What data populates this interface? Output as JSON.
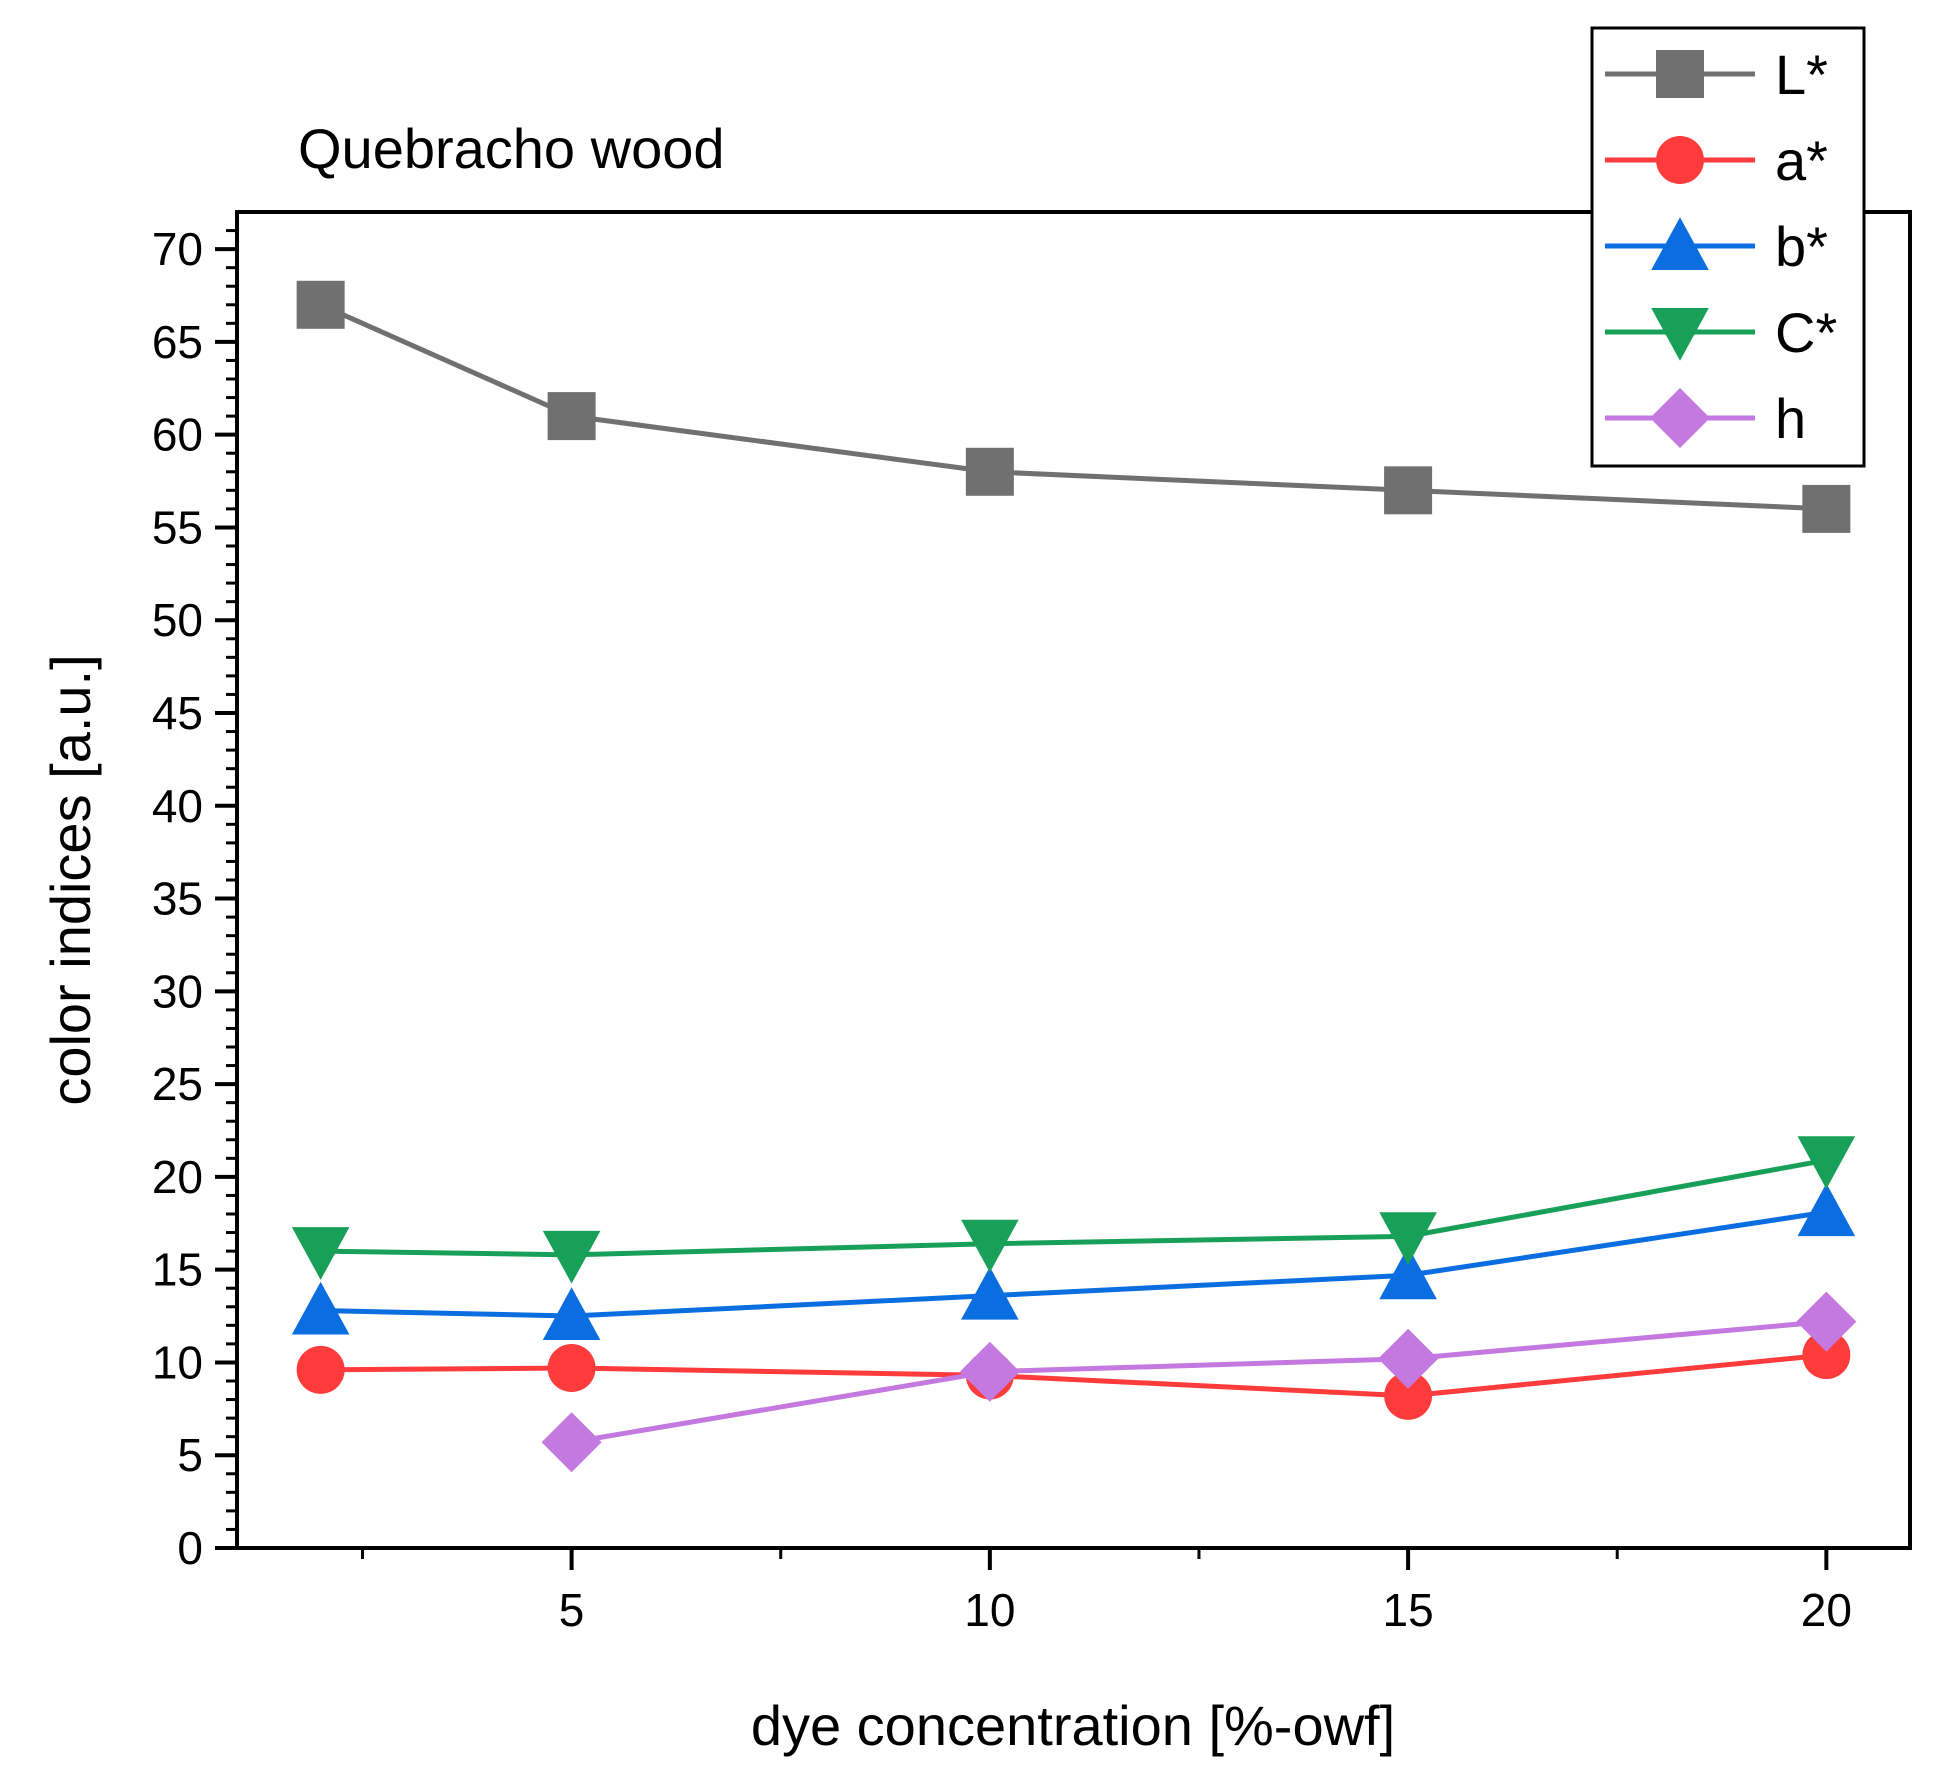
{
  "chart_data": {
    "type": "line",
    "title": "Quebracho wood",
    "xlabel": "dye concentration [%-owf]",
    "ylabel": "color indices [a.u.]",
    "xlim": [
      1,
      21
    ],
    "ylim": [
      0,
      72
    ],
    "x_ticks": [
      5,
      10,
      15,
      20
    ],
    "y_ticks": [
      0,
      5,
      10,
      15,
      20,
      25,
      30,
      35,
      40,
      45,
      50,
      55,
      60,
      65,
      70
    ],
    "grid": false,
    "legend_position": "top-right",
    "x": [
      2,
      5,
      10,
      15,
      20
    ],
    "series": [
      {
        "name": "L*",
        "color": "#707070",
        "marker": "square",
        "values": [
          67,
          61,
          58,
          57,
          56
        ]
      },
      {
        "name": "a*",
        "color": "#ff3b3b",
        "marker": "circle",
        "values": [
          9.6,
          9.7,
          9.3,
          8.2,
          10.4
        ]
      },
      {
        "name": "b*",
        "color": "#0a6ee0",
        "marker": "triangle-up",
        "values": [
          12.8,
          12.5,
          13.6,
          14.7,
          18.1
        ]
      },
      {
        "name": "C*",
        "color": "#18a058",
        "marker": "triangle-down",
        "values": [
          16.0,
          15.8,
          16.4,
          16.8,
          20.9
        ]
      },
      {
        "name": "h",
        "color": "#c479e0",
        "marker": "diamond",
        "values": [
          null,
          5.7,
          9.5,
          10.2,
          12.2
        ]
      }
    ]
  }
}
